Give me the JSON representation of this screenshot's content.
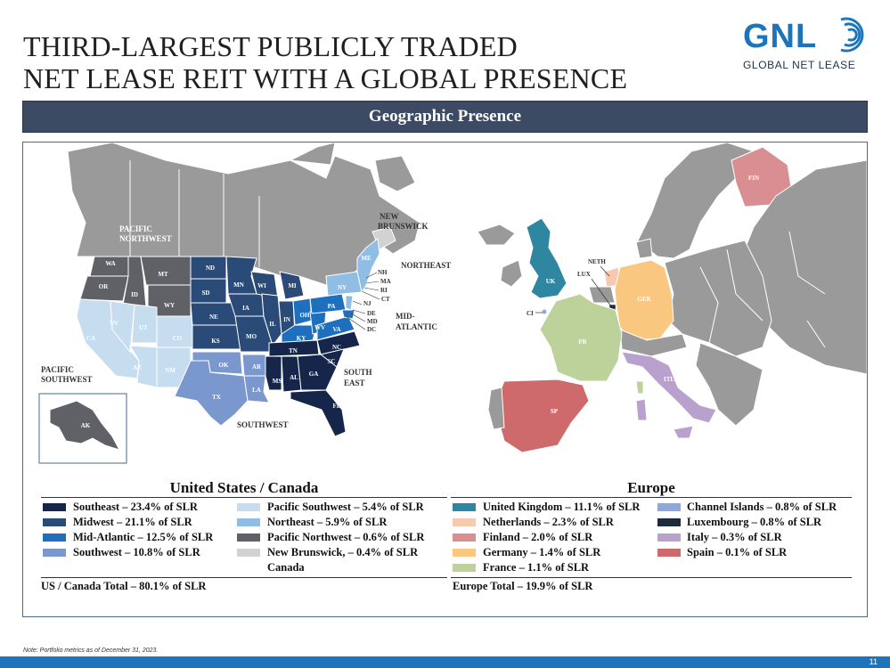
{
  "title": {
    "line1": "THIRD-LARGEST PUBLICLY TRADED",
    "line2": "NET LEASE REIT WITH A GLOBAL PRESENCE"
  },
  "logo": {
    "mark": "GNL",
    "subtitle": "GLOBAL NET LEASE",
    "icon": "concentric-arc-icon"
  },
  "banner": "Geographic Presence",
  "us_map": {
    "regions": {
      "pacific_northwest": "PACIFIC\nNORTHWEST",
      "pacific_southwest": "PACIFIC\nSOUTHWEST",
      "new_brunswick": "NEW\nBRUNSWICK",
      "northeast": "NORTHEAST",
      "mid_atlantic": "MID-\nATLANTIC",
      "south_east": "SOUTH\nEAST",
      "southwest": "SOUTHWEST"
    },
    "states": [
      "WA",
      "OR",
      "ID",
      "MT",
      "WY",
      "NV",
      "UT",
      "CO",
      "CA",
      "AZ",
      "NM",
      "ND",
      "SD",
      "NE",
      "KS",
      "OK",
      "TX",
      "MN",
      "IA",
      "MO",
      "AR",
      "LA",
      "WI",
      "IL",
      "MI",
      "IN",
      "OH",
      "KY",
      "TN",
      "MS",
      "AL",
      "GA",
      "FL",
      "SC",
      "NC",
      "VA",
      "WV",
      "PA",
      "NY",
      "ME",
      "NH",
      "MA",
      "RI",
      "CT",
      "NJ",
      "DE",
      "MD",
      "DC",
      "AK"
    ]
  },
  "europe_map": {
    "labels": [
      "UK",
      "NETH",
      "LUX",
      "GER",
      "FR",
      "CI",
      "SP",
      "ITL",
      "FIN"
    ]
  },
  "legend_us": {
    "heading": "United States / Canada",
    "items": [
      {
        "label": "Southeast – 23.4% of SLR",
        "color": "#16264a"
      },
      {
        "label": "Midwest – 21.1% of SLR",
        "color": "#2a4a78"
      },
      {
        "label": "Mid-Atlantic – 12.5% of SLR",
        "color": "#1f6fbf"
      },
      {
        "label": "Southwest – 10.8% of SLR",
        "color": "#7a98cd"
      },
      {
        "label": "Pacific Southwest – 5.4% of SLR",
        "color": "#c6dcef"
      },
      {
        "label": "Northeast – 5.9% of SLR",
        "color": "#8fbde3"
      },
      {
        "label": "Pacific Northwest – 0.6% of SLR",
        "color": "#5f6166"
      },
      {
        "label": "New Brunswick, – 0.4% of SLR",
        "label2": "Canada",
        "color": "#d2d2d2"
      }
    ],
    "total": "US / Canada Total – 80.1% of SLR"
  },
  "legend_eu": {
    "heading": "Europe",
    "items": [
      {
        "label": "United Kingdom – 11.1% of SLR",
        "color": "#2f86a0"
      },
      {
        "label": "Netherlands – 2.3% of SLR",
        "color": "#f6c9b0"
      },
      {
        "label": "Finland – 2.0% of SLR",
        "color": "#d98f91"
      },
      {
        "label": "Germany – 1.4% of SLR",
        "color": "#f9c77f"
      },
      {
        "label": "France – 1.1% of SLR",
        "color": "#bcd29a"
      },
      {
        "label": "Channel Islands – 0.8% of SLR",
        "color": "#8ea9d9"
      },
      {
        "label": "Luxembourg – 0.8% of SLR",
        "color": "#1e2b3d"
      },
      {
        "label": "Italy – 0.3% of SLR",
        "color": "#b8a2cd"
      },
      {
        "label": "Spain – 0.1% of SLR",
        "color": "#cf6a6c"
      }
    ],
    "total": "Europe Total – 19.9% of SLR"
  },
  "footnote": "Note: Portfolio metrics as of December 31, 2023.",
  "page_number": "11"
}
